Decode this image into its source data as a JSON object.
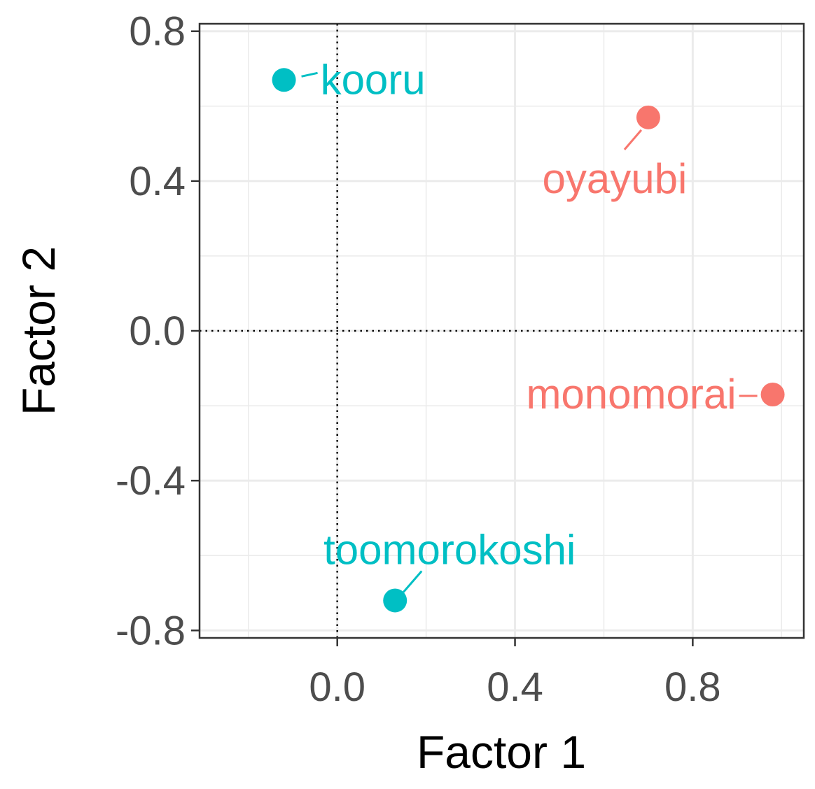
{
  "chart_data": {
    "type": "scatter",
    "title": "",
    "xlabel": "Factor 1",
    "ylabel": "Factor 2",
    "xlim": [
      -0.31,
      1.05
    ],
    "ylim": [
      -0.82,
      0.82
    ],
    "x_ticks": [
      0.0,
      0.4,
      0.8
    ],
    "y_ticks": [
      -0.8,
      -0.4,
      0.0,
      0.4,
      0.8
    ],
    "x_tick_labels": [
      "0.0",
      "0.4",
      "0.8"
    ],
    "y_tick_labels": [
      "-0.8",
      "-0.4",
      "0.0",
      "0.4",
      "0.8"
    ],
    "grid": true,
    "reference_lines": {
      "x": 0.0,
      "y": 0.0,
      "style": "dotted"
    },
    "legend": "none",
    "groups": [
      {
        "color": "#00BFC4"
      },
      {
        "color": "#F8766D"
      }
    ],
    "points": [
      {
        "label": "kooru",
        "x": -0.12,
        "y": 0.67,
        "group": 0
      },
      {
        "label": "oyayubi",
        "x": 0.7,
        "y": 0.57,
        "group": 1
      },
      {
        "label": "monomorai",
        "x": 0.98,
        "y": -0.17,
        "group": 1
      },
      {
        "label": "toomorokoshi",
        "x": 0.13,
        "y": -0.72,
        "group": 0
      }
    ]
  }
}
